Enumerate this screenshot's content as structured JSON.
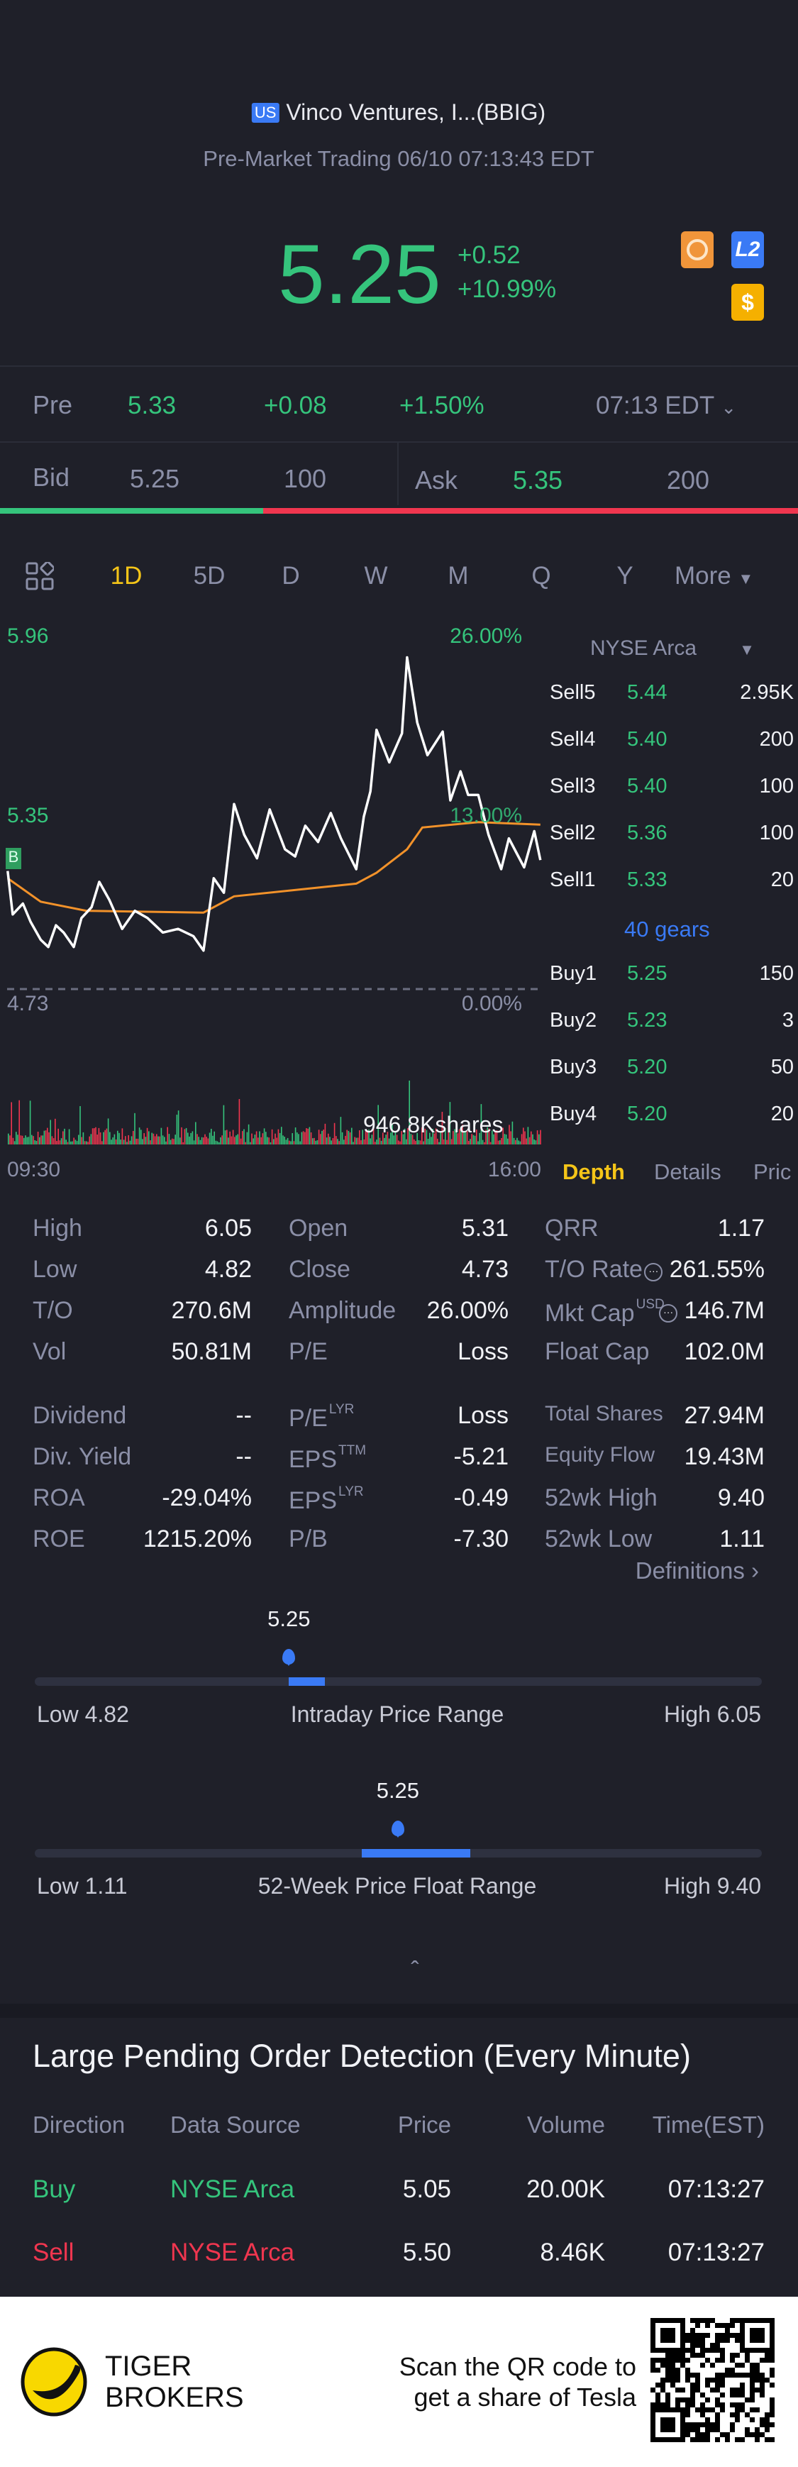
{
  "header": {
    "market_badge": "US",
    "title": "Vinco Ventures, I...(BBIG)",
    "subtitle": "Pre-Market Trading 06/10 07:13:43 EDT"
  },
  "quote": {
    "price": "5.25",
    "change": "+0.52",
    "change_pct": "+10.99%",
    "icons": [
      "options-icon",
      "level2-icon",
      "dollar-icon"
    ],
    "level2_label": "L2",
    "dollar_label": "$"
  },
  "pre": {
    "label": "Pre",
    "price": "5.33",
    "change": "+0.08",
    "change_pct": "+1.50%",
    "time": "07:13 EDT"
  },
  "bidask": {
    "bid_label": "Bid",
    "bid": "5.25",
    "bid_size": "100",
    "ask_label": "Ask",
    "ask": "5.35",
    "ask_size": "200",
    "bid_ratio": 0.33
  },
  "tabs": {
    "items": [
      "1D",
      "5D",
      "D",
      "W",
      "M",
      "Q",
      "Y"
    ],
    "more": "More",
    "active": "1D"
  },
  "chart": {
    "y_top": "5.96",
    "y_mid": "5.35",
    "y_bottom": "4.73",
    "pct_top": "26.00%",
    "pct_mid": "13.00%",
    "pct_bottom": "0.00%",
    "x_start": "09:30",
    "x_end": "16:00",
    "volume_label": "946.8Kshares",
    "marker": "B"
  },
  "orderbook": {
    "exchange": "NYSE Arca",
    "sells": [
      {
        "label": "Sell5",
        "price": "5.44",
        "qty": "2.95K"
      },
      {
        "label": "Sell4",
        "price": "5.40",
        "qty": "200"
      },
      {
        "label": "Sell3",
        "price": "5.40",
        "qty": "100"
      },
      {
        "label": "Sell2",
        "price": "5.36",
        "qty": "100"
      },
      {
        "label": "Sell1",
        "price": "5.33",
        "qty": "20"
      }
    ],
    "gears": "40 gears",
    "buys": [
      {
        "label": "Buy1",
        "price": "5.25",
        "qty": "150"
      },
      {
        "label": "Buy2",
        "price": "5.23",
        "qty": "3"
      },
      {
        "label": "Buy3",
        "price": "5.20",
        "qty": "50"
      },
      {
        "label": "Buy4",
        "price": "5.20",
        "qty": "20"
      }
    ],
    "tabs": [
      "Depth",
      "Details",
      "Pric"
    ]
  },
  "stats": {
    "block1": [
      [
        {
          "l": "High",
          "v": "6.05"
        },
        {
          "l": "Open",
          "v": "5.31"
        },
        {
          "l": "QRR",
          "v": "1.17"
        }
      ],
      [
        {
          "l": "Low",
          "v": "4.82"
        },
        {
          "l": "Close",
          "v": "4.73"
        },
        {
          "l": "T/O Rate",
          "v": "261.55%"
        }
      ],
      [
        {
          "l": "T/O",
          "v": "270.6M"
        },
        {
          "l": "Amplitude",
          "v": "26.00%"
        },
        {
          "l": "Mkt Cap",
          "sup": "USD",
          "v": "146.7M"
        }
      ],
      [
        {
          "l": "Vol",
          "v": "50.81M"
        },
        {
          "l": "P/E",
          "v": "Loss"
        },
        {
          "l": "Float Cap",
          "v": "102.0M"
        }
      ]
    ],
    "block2": [
      [
        {
          "l": "Dividend",
          "v": "--"
        },
        {
          "l": "P/E",
          "sup": "LYR",
          "v": "Loss"
        },
        {
          "l": "Total Shares",
          "v": "27.94M"
        }
      ],
      [
        {
          "l": "Div. Yield",
          "v": "--"
        },
        {
          "l": "EPS",
          "sup": "TTM",
          "v": "-5.21"
        },
        {
          "l": "Equity Flow",
          "v": "19.43M"
        }
      ],
      [
        {
          "l": "ROA",
          "v": "-29.04%"
        },
        {
          "l": "EPS",
          "sup": "LYR",
          "v": "-0.49"
        },
        {
          "l": "52wk High",
          "v": "9.40"
        }
      ],
      [
        {
          "l": "ROE",
          "v": "1215.20%"
        },
        {
          "l": "P/B",
          "v": "-7.30"
        },
        {
          "l": "52wk Low",
          "v": "1.11"
        }
      ]
    ],
    "definitions": "Definitions"
  },
  "ranges": [
    {
      "current": "5.25",
      "low": "Low 4.82",
      "title": "Intraday Price Range",
      "high": "High 6.05",
      "low_v": 4.82,
      "high_v": 6.05,
      "cur_v": 5.25
    },
    {
      "current": "5.25",
      "low": "Low 1.11",
      "title": "52-Week Price Float Range",
      "high": "High 9.40",
      "low_v": 1.11,
      "high_v": 9.4,
      "cur_v": 5.25
    }
  ],
  "pending": {
    "title": "Large Pending Order Detection (Every Minute)",
    "headers": [
      "Direction",
      "Data Source",
      "Price",
      "Volume",
      "Time(EST)"
    ],
    "rows": [
      [
        "Buy",
        "NYSE Arca",
        "5.05",
        "20.00K",
        "07:13:27"
      ],
      [
        "Sell",
        "NYSE Arca",
        "5.50",
        "8.46K",
        "07:13:27"
      ]
    ]
  },
  "footer": {
    "brand_line1": "TIGER",
    "brand_line2": "BROKERS",
    "cta_line1": "Scan the QR code to",
    "cta_line2": "get a share of Tesla"
  },
  "colors": {
    "up": "#35c47c",
    "down": "#f0364f",
    "accent": "#3a7af5",
    "active_tab": "#f5c518",
    "vwap": "#f2922a"
  }
}
